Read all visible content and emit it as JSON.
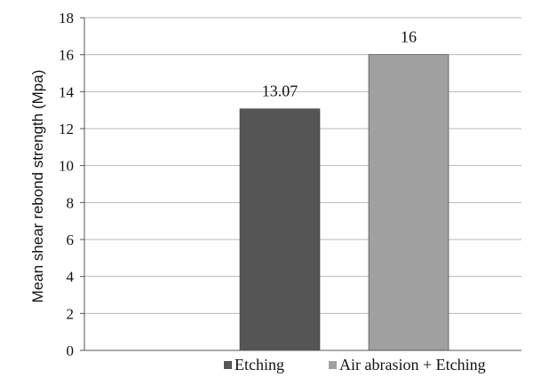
{
  "chart_data": {
    "type": "bar",
    "categories": [
      "Etching",
      "Air abrasion + Etching"
    ],
    "series": [
      {
        "name": "Etching",
        "color": "#555555",
        "values": [
          13.07,
          null
        ]
      },
      {
        "name": "Air abrasion + Etching",
        "color": "#a0a0a0",
        "values": [
          null,
          16
        ]
      }
    ],
    "data_labels": [
      "13.07",
      "16"
    ],
    "ylabel": "Mean shear rebond strength (Mpa)",
    "xlabel": "",
    "title": "",
    "ylim": [
      0,
      18
    ],
    "yticks": [
      0,
      2,
      4,
      6,
      8,
      10,
      12,
      14,
      16,
      18
    ],
    "grid": true,
    "legend_position": "bottom-right"
  }
}
